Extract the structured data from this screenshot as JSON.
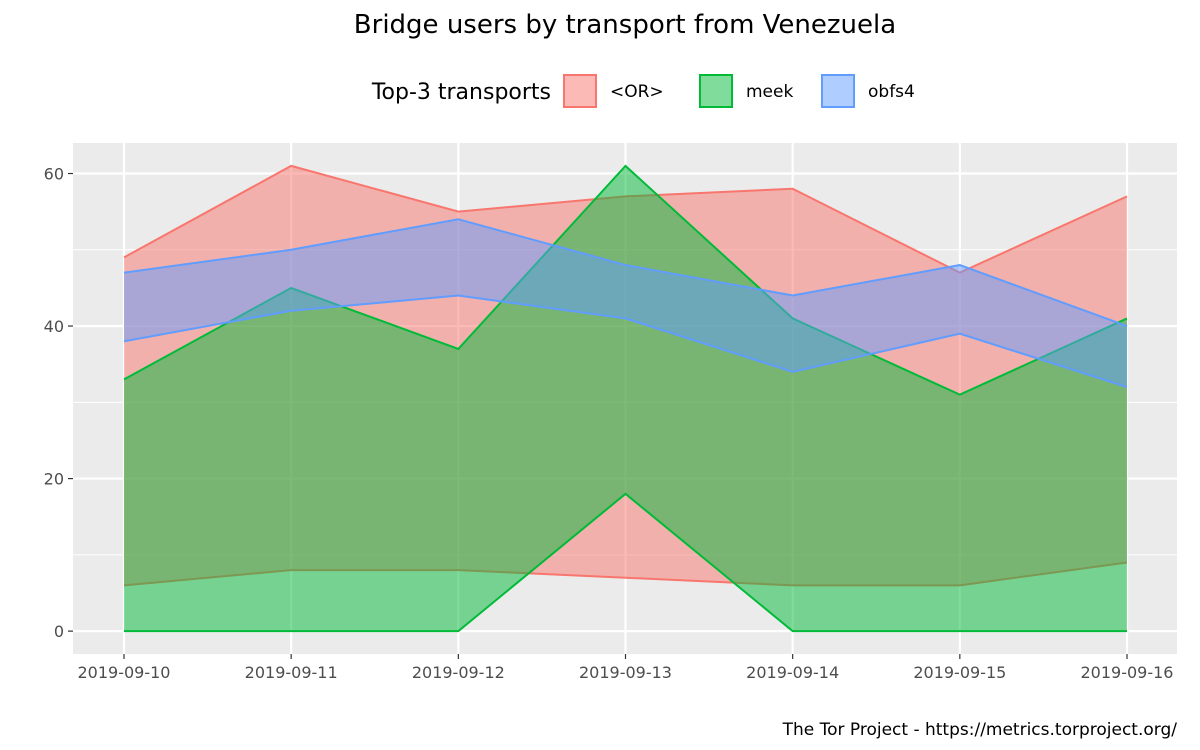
{
  "chart_data": {
    "type": "area",
    "title": "Bridge users by transport from Venezuela",
    "caption": "The Tor Project - https://metrics.torproject.org/",
    "legend": {
      "title": "Top-3 transports",
      "position": "top"
    },
    "xlabel": "",
    "ylabel": "",
    "x": [
      "2019-09-10",
      "2019-09-11",
      "2019-09-12",
      "2019-09-13",
      "2019-09-14",
      "2019-09-15",
      "2019-09-16"
    ],
    "ylim": [
      -3,
      64
    ],
    "yticks": [
      0,
      20,
      40,
      60
    ],
    "grid": true,
    "series": [
      {
        "name": "<OR>",
        "color": "#f8766d",
        "lower": [
          6,
          8,
          8,
          7,
          6,
          6,
          9
        ],
        "upper": [
          49,
          61,
          55,
          57,
          58,
          47,
          57
        ]
      },
      {
        "name": "meek",
        "color": "#00ba38",
        "lower": [
          0,
          0,
          0,
          18,
          0,
          0,
          0
        ],
        "upper": [
          33,
          45,
          37,
          61,
          41,
          31,
          41
        ]
      },
      {
        "name": "obfs4",
        "color": "#619cff",
        "lower": [
          38,
          42,
          44,
          41,
          34,
          39,
          32
        ],
        "upper": [
          47,
          50,
          54,
          48,
          44,
          48,
          40
        ]
      }
    ]
  }
}
